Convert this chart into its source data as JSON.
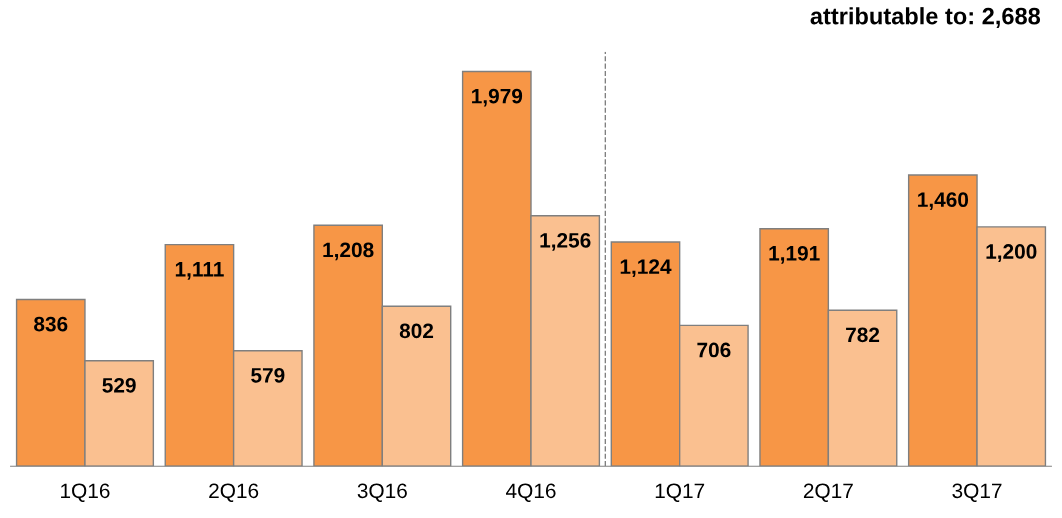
{
  "chart_data": {
    "type": "bar",
    "categories": [
      "1Q16",
      "2Q16",
      "3Q16",
      "4Q16",
      "1Q17",
      "2Q17",
      "3Q17"
    ],
    "series": [
      {
        "color": "#f79646",
        "values": [
          836,
          1111,
          1208,
          1979,
          1124,
          1191,
          1460
        ],
        "value_labels": [
          "836",
          "1,111",
          "1,208",
          "1,979",
          "1,124",
          "1,191",
          "1,460"
        ]
      },
      {
        "color": "#fac090",
        "values": [
          529,
          579,
          802,
          1256,
          706,
          782,
          1200
        ],
        "value_labels": [
          "529",
          "579",
          "802",
          "1,256",
          "706",
          "782",
          "1,200"
        ]
      }
    ],
    "annotations": [
      "attributable to: 2,688"
    ],
    "grid": false,
    "legend": false
  }
}
